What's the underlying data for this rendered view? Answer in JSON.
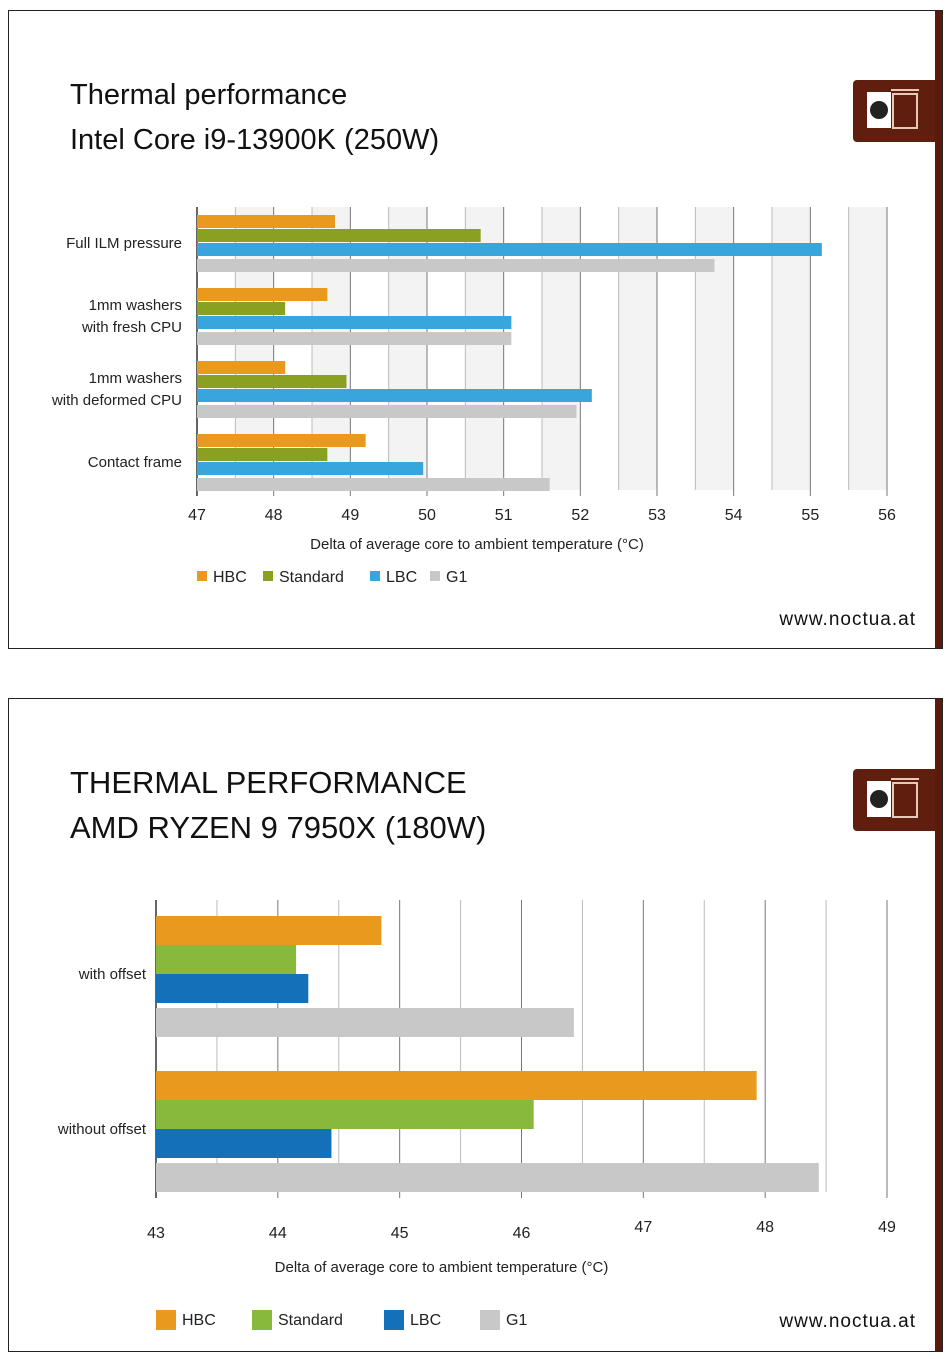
{
  "chart_data": [
    {
      "type": "bar",
      "orientation": "horizontal",
      "title": "Thermal performance",
      "subtitle": "Intel Core i9-13900K (250W)",
      "categories": [
        "Full ILM pressure",
        "1mm washers\nwith fresh CPU",
        "1mm washers\nwith deformed CPU",
        "Contact frame"
      ],
      "series": [
        {
          "name": "HBC",
          "color": "#e99a1e",
          "values": [
            48.8,
            48.7,
            48.15,
            49.2
          ]
        },
        {
          "name": "Standard",
          "color": "#8aa020",
          "values": [
            50.7,
            48.15,
            48.95,
            48.7
          ]
        },
        {
          "name": "LBC",
          "color": "#38a6dc",
          "values": [
            55.15,
            51.1,
            52.15,
            49.95
          ]
        },
        {
          "name": "G1",
          "color": "#c8c8c8",
          "values": [
            53.75,
            51.1,
            51.95,
            51.6
          ]
        }
      ],
      "xlabel": "Delta of average core to ambient temperature (°C)",
      "xlim": [
        47,
        56
      ],
      "ticks": [
        "47",
        "48",
        "49",
        "50",
        "51",
        "52",
        "53",
        "54",
        "55",
        "56"
      ],
      "grid": true,
      "legend": "bottom-left",
      "footer": "www.noctua.at"
    },
    {
      "type": "bar",
      "orientation": "horizontal",
      "title": "THERMAL PERFORMANCE",
      "subtitle": "AMD RYZEN 9 7950X (180W)",
      "categories": [
        "with offset",
        "without offset"
      ],
      "series": [
        {
          "name": "HBC",
          "color": "#e99a1e",
          "values": [
            44.85,
            47.93
          ]
        },
        {
          "name": "Standard",
          "color": "#88b83c",
          "values": [
            44.15,
            46.1
          ]
        },
        {
          "name": "LBC",
          "color": "#1470b8",
          "values": [
            44.25,
            44.44
          ]
        },
        {
          "name": "G1",
          "color": "#c8c8c8",
          "values": [
            46.43,
            48.44
          ]
        }
      ],
      "xlabel": "Delta of average core to ambient temperature (°C)",
      "xlim": [
        43,
        49
      ],
      "ticks": [
        "43",
        "44",
        "45",
        "46",
        "47",
        "48",
        "49"
      ],
      "grid": true,
      "legend": "bottom-left",
      "footer": "www.noctua.at"
    }
  ]
}
